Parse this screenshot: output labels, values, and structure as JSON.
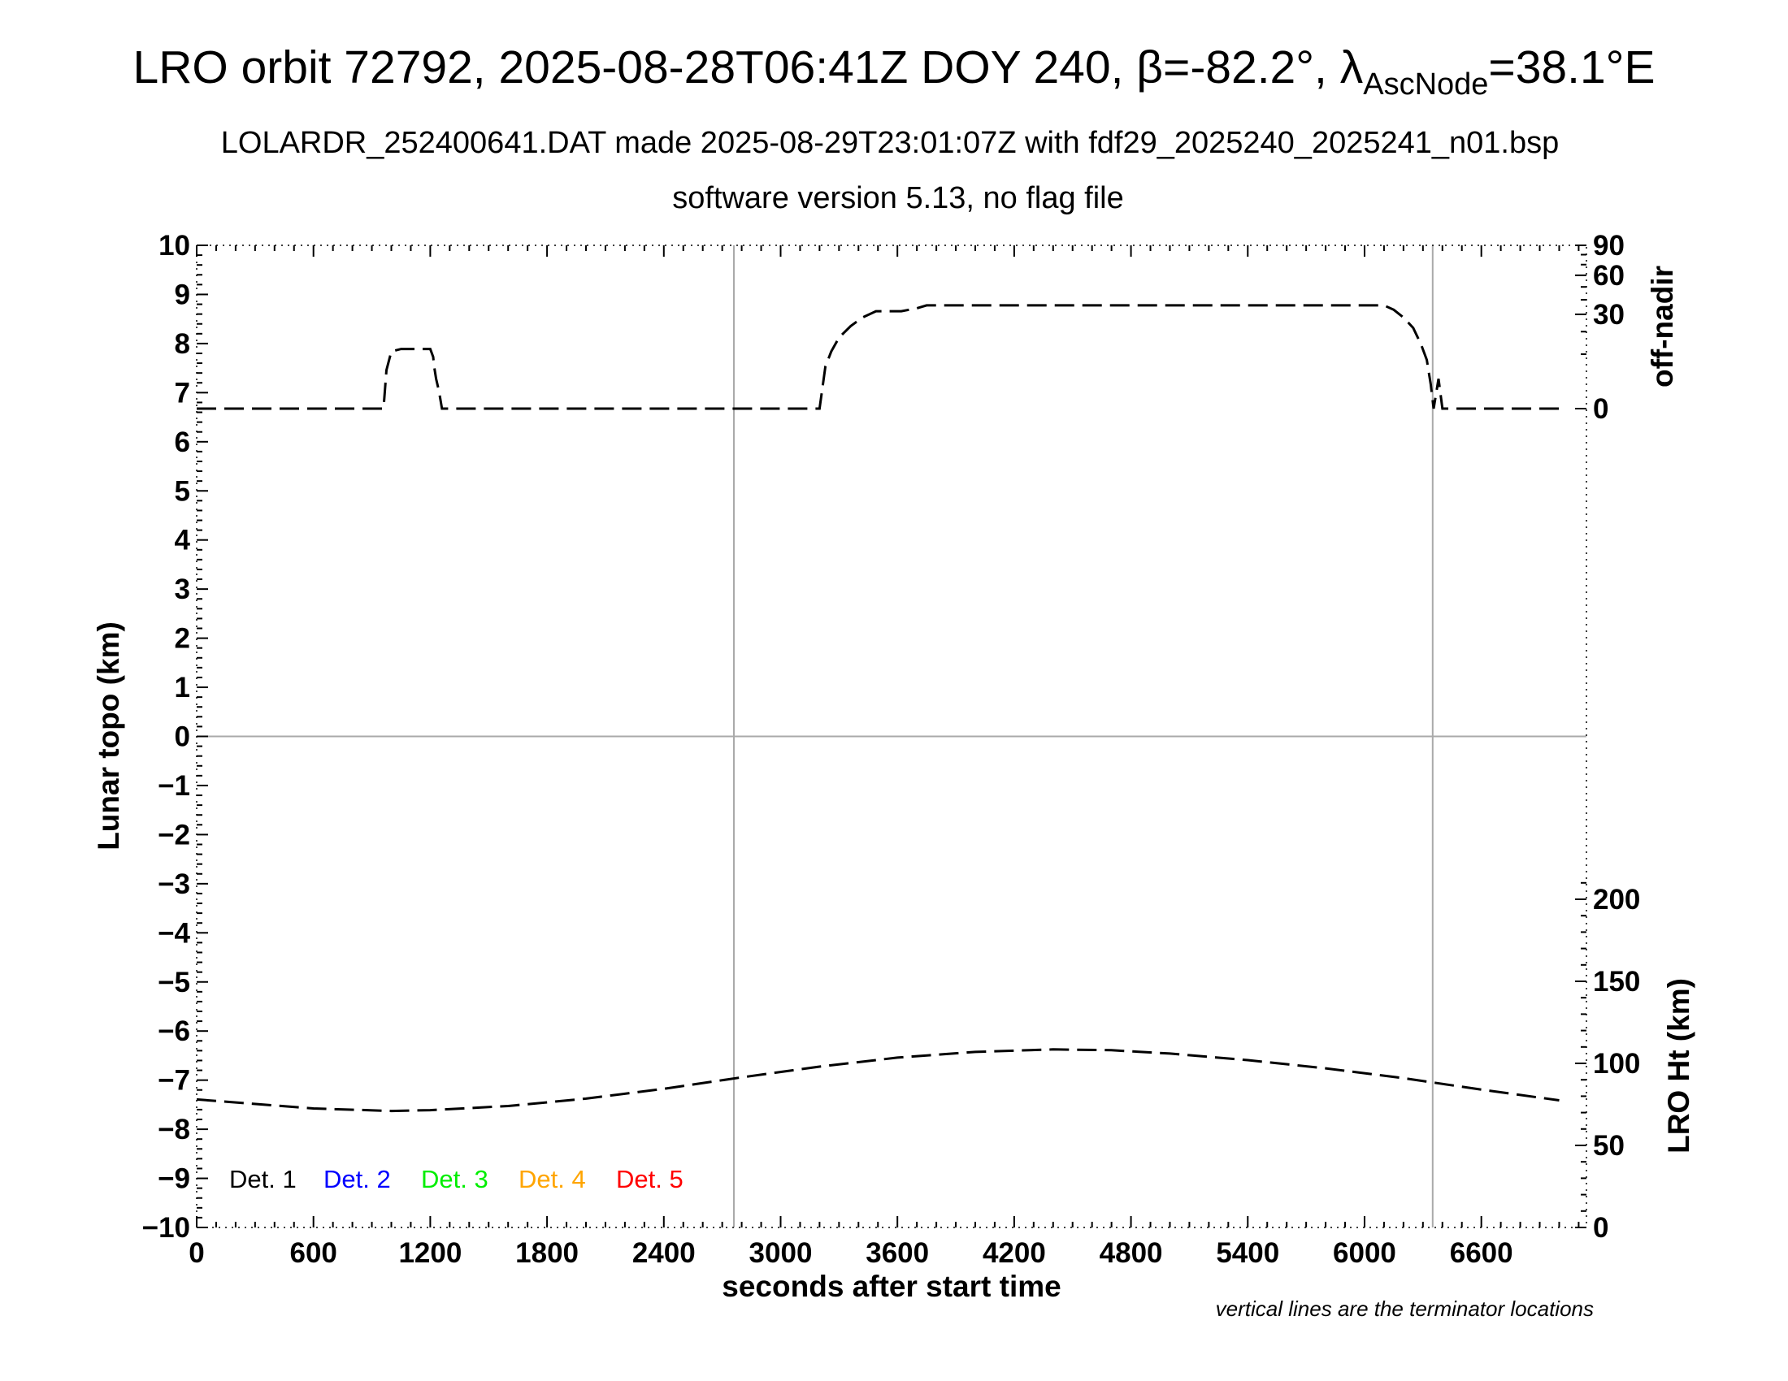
{
  "header": {
    "title_pre": "LRO orbit 72792, 2025-08-28T06:41Z DOY 240, β=-82.2°, λ",
    "title_sub": "AscNode",
    "title_post": "=38.1°E",
    "subtitle1": "LOLARDR_252400641.DAT made 2025-08-29T23:01:07Z with fdf29_2025240_2025241_n01.bsp",
    "subtitle2": "software version 5.13, no flag file"
  },
  "axes": {
    "xlabel": "seconds after start time",
    "ylabel_left": "Lunar topo (km)",
    "ylabel_right_top": "off-nadir",
    "ylabel_right_bottom": "LRO Ht (km)",
    "note": "vertical lines are the terminator locations"
  },
  "legend": [
    {
      "label": "Det. 1",
      "color": "#000000"
    },
    {
      "label": "Det. 2",
      "color": "#0000ff"
    },
    {
      "label": "Det. 3",
      "color": "#00ee00"
    },
    {
      "label": "Det. 4",
      "color": "#ffa500"
    },
    {
      "label": "Det. 5",
      "color": "#ff0000"
    }
  ],
  "chart_data": {
    "type": "line",
    "xlim": [
      0,
      7140
    ],
    "x_ticks": [
      0,
      600,
      1200,
      1800,
      2400,
      3000,
      3600,
      4200,
      4800,
      5400,
      6000,
      6600
    ],
    "ylim_left": [
      -10,
      10
    ],
    "y_ticks_left": [
      "10",
      "9",
      "8",
      "7",
      "6",
      "5",
      "4",
      "3",
      "2",
      "1",
      "0",
      "−1",
      "−2",
      "−3",
      "−4",
      "−5",
      "−6",
      "−7",
      "−8",
      "−9",
      "−10"
    ],
    "off_nadir_ticks": [
      0,
      30,
      60,
      90
    ],
    "lro_ht_ticks": [
      0,
      50,
      100,
      150,
      200
    ],
    "terminators_x": [
      2760,
      6350
    ],
    "zero_line": true,
    "series": [
      {
        "key": "off_nadir",
        "axis": "off-nadir",
        "style": "dashed",
        "x": [
          0,
          960,
          975,
          1000,
          1050,
          1100,
          1150,
          1200,
          1215,
          1220,
          1230,
          1245,
          1260,
          1400,
          2000,
          2800,
          3200,
          3230,
          3260,
          3300,
          3360,
          3420,
          3490,
          3550,
          3620,
          3700,
          3750,
          3800,
          4500,
          5400,
          6100,
          6150,
          6200,
          6250,
          6290,
          6320,
          6340,
          6355,
          6380,
          6400,
          7000
        ],
        "y": [
          0,
          0,
          5,
          11,
          12,
          12,
          12,
          12,
          9,
          6,
          3,
          1,
          0,
          0,
          0,
          0,
          0,
          6,
          11,
          17,
          23,
          28,
          32,
          32,
          32,
          34,
          36,
          36,
          36,
          36,
          36,
          33,
          28,
          22,
          14,
          8,
          2,
          0,
          3,
          0,
          0
        ]
      },
      {
        "key": "lro_ht",
        "axis": "LRO Ht (km)",
        "style": "dashed",
        "x": [
          0,
          600,
          1000,
          1200,
          1600,
          2000,
          2400,
          2800,
          3200,
          3600,
          4000,
          4400,
          4700,
          5000,
          5400,
          5800,
          6200,
          6600,
          7000
        ],
        "y": [
          78,
          72.5,
          71,
          71.5,
          74,
          78.5,
          84.5,
          91.5,
          98,
          103.5,
          107,
          108.5,
          108,
          106,
          102,
          97,
          91,
          84,
          77.5
        ]
      }
    ]
  }
}
